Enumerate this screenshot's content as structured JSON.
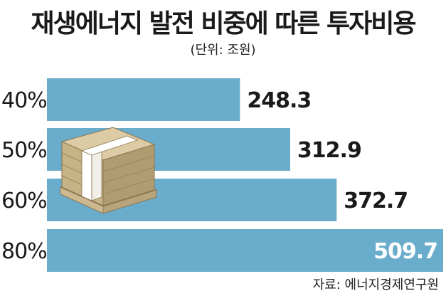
{
  "colors": {
    "bar": "#6aaccb",
    "text": "#1a1a1a",
    "inside_label": "#ffffff",
    "stack": "#d8c6a0"
  },
  "chart_data": {
    "type": "bar",
    "orientation": "horizontal",
    "title": "재생에너지 발전 비중에 따른 투자비용",
    "unit": "(단위: 조원)",
    "categories": [
      "40%",
      "50%",
      "60%",
      "80%"
    ],
    "values": [
      248.3,
      312.9,
      372.7,
      509.7
    ],
    "xlim": [
      0,
      509.7
    ],
    "grid": false,
    "legend": "none"
  },
  "source": "자료: 에너지경제연구원",
  "decoration": {
    "icon": "money-stack-icon"
  }
}
